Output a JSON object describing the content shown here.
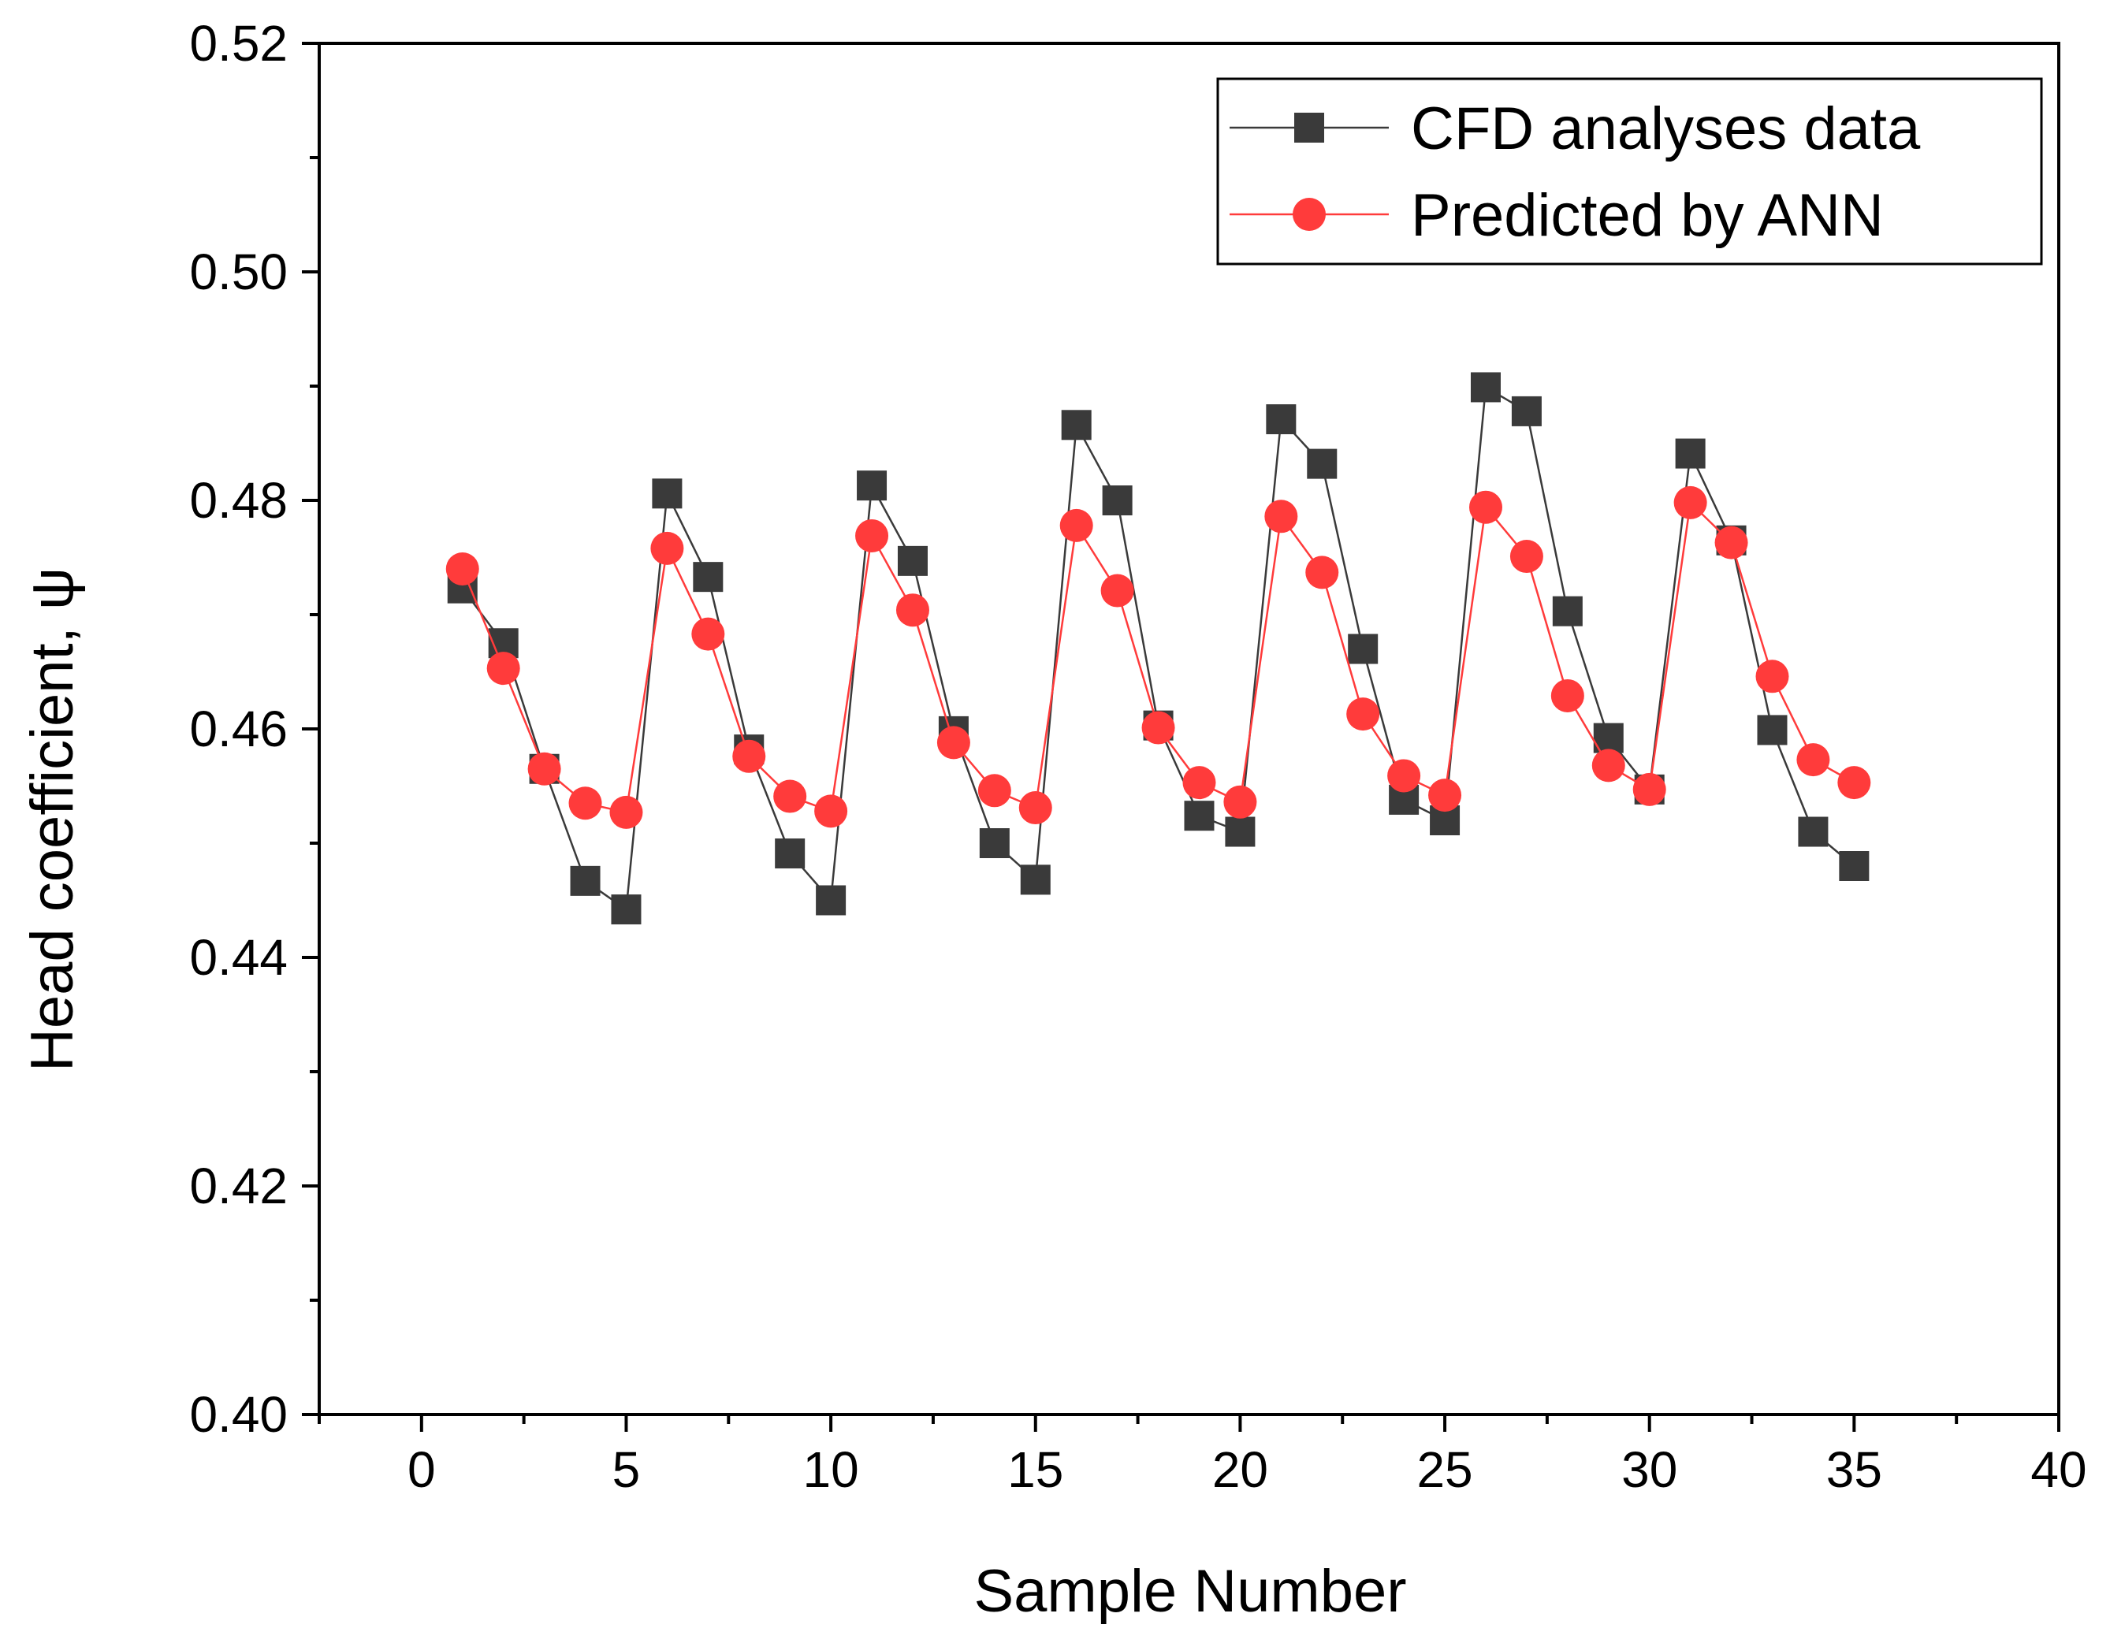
{
  "chart_data": {
    "type": "line",
    "xlabel": "Sample Number",
    "ylabel": "Head coefficient, ψ",
    "xlim": [
      -2.5,
      40
    ],
    "ylim": [
      0.4,
      0.52
    ],
    "x_ticks": [
      "0",
      "5",
      "10",
      "15",
      "20",
      "25",
      "30",
      "35",
      "40"
    ],
    "y_ticks": [
      "0.40",
      "0.42",
      "0.44",
      "0.46",
      "0.48",
      "0.50",
      "0.52"
    ],
    "legend_position": "top-right",
    "grid": false,
    "x": [
      1,
      2,
      3,
      4,
      5,
      6,
      7,
      8,
      9,
      10,
      11,
      12,
      13,
      14,
      15,
      16,
      17,
      18,
      19,
      20,
      21,
      22,
      23,
      24,
      25,
      26,
      27,
      28,
      29,
      30,
      31,
      32,
      33,
      34,
      35
    ],
    "series": [
      {
        "name": "CFD analyses data",
        "marker": "square",
        "color": "#3a3a3a",
        "values": [
          0.4723,
          0.4675,
          0.4565,
          0.4467,
          0.4442,
          0.4806,
          0.4733,
          0.4582,
          0.4491,
          0.445,
          0.4813,
          0.4747,
          0.4598,
          0.45,
          0.4468,
          0.4866,
          0.48,
          0.4603,
          0.4524,
          0.451,
          0.4871,
          0.4832,
          0.467,
          0.4538,
          0.452,
          0.4899,
          0.4878,
          0.4703,
          0.4592,
          0.4547,
          0.4841,
          0.4765,
          0.4599,
          0.451,
          0.448
        ]
      },
      {
        "name": "Predicted by ANN",
        "marker": "circle",
        "color": "#ff3b3b",
        "values": [
          0.474,
          0.4653,
          0.4565,
          0.4535,
          0.4527,
          0.4758,
          0.4683,
          0.4576,
          0.4541,
          0.4528,
          0.4769,
          0.4704,
          0.4588,
          0.4546,
          0.4531,
          0.4778,
          0.4721,
          0.4601,
          0.4553,
          0.4536,
          0.4786,
          0.4737,
          0.4613,
          0.4559,
          0.4542,
          0.4794,
          0.4751,
          0.4629,
          0.4568,
          0.4547,
          0.4798,
          0.4763,
          0.4646,
          0.4573,
          0.4553
        ]
      }
    ]
  }
}
